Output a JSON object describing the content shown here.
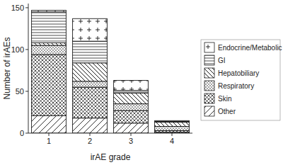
{
  "chart_data": {
    "type": "bar",
    "stacked": true,
    "legend": "right",
    "x_label": "irAE grade",
    "y_label": "Number of irAEs",
    "categories": [
      "1",
      "2",
      "3",
      "4"
    ],
    "series": [
      {
        "name": "Other",
        "color": "#000000",
        "values": [
          21,
          18,
          12,
          1
        ]
      },
      {
        "name": "Skin",
        "color": "#000000",
        "values": [
          73,
          37,
          15,
          2
        ]
      },
      {
        "name": "Respiratory",
        "color": "#000000",
        "values": [
          11,
          7,
          8,
          5
        ]
      },
      {
        "name": "Hepatobiliary",
        "color": "#000000",
        "values": [
          3,
          22,
          13,
          5
        ]
      },
      {
        "name": "GI",
        "color": "#000000",
        "values": [
          37,
          26,
          3,
          1
        ]
      },
      {
        "name": "Endocrine/Metabolic",
        "color": "#000000",
        "values": [
          2,
          27,
          12,
          1
        ]
      }
    ],
    "ylim": [
      0,
      155
    ],
    "yticks": [
      0,
      50,
      100,
      150
    ],
    "grid": false
  }
}
